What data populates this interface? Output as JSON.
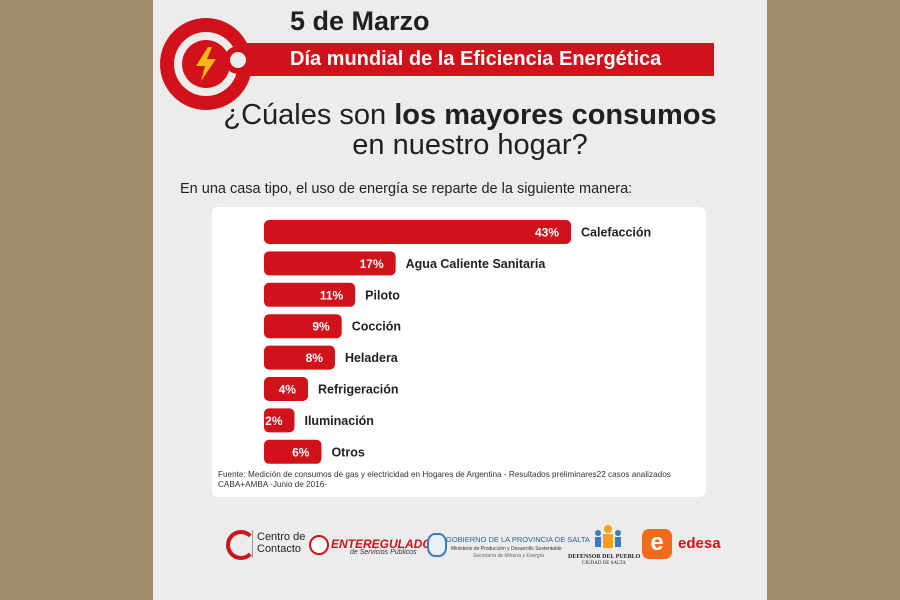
{
  "header": {
    "date": "5 de Marzo",
    "banner": "Día mundial de la Eficiencia Energética",
    "question_part1": "¿Cúales son ",
    "question_bold": "los mayores consumos",
    "question_part2": "en nuestro hogar?",
    "intro": "En una casa tipo, el uso de energía se reparte de la siguiente manera:"
  },
  "colors": {
    "accent": "#d1121b",
    "background": "#a08c6b",
    "poster": "#ececeb"
  },
  "chart_data": {
    "type": "bar",
    "orientation": "horizontal",
    "categories": [
      "Calefacción",
      "Agua Caliente Sanitaria",
      "Piloto",
      "Cocción",
      "Heladera",
      "Refrigeración",
      "Iluminación",
      "Otros"
    ],
    "values": [
      43,
      17,
      11,
      9,
      8,
      4,
      2,
      6
    ],
    "value_labels": [
      "43%",
      "17%",
      "11%",
      "9%",
      "8%",
      "4%",
      "2%",
      "6%"
    ],
    "unit": "%",
    "color": "#d1121b",
    "grid": false,
    "legend": "none"
  },
  "source": "Fuente: Medición de consumos de gas y electricidad en Hogares de Argentina - Resultados preliminares22 casos analizados CABA+AMBA -Junio de 2016-",
  "logos": {
    "centro_contacto_1": "Centro de",
    "centro_contacto_2": "Contacto",
    "enteregulador": "ENTEREGULADOR",
    "enteregulador_sub": "de Servicios Públicos",
    "gobierno": "GOBIERNO DE LA PROVINCIA DE SALTA",
    "gobierno_sub1": "Ministerio de Producción y Desarrollo Sustentable",
    "gobierno_sub2": "Secretaría de Minería y Energía",
    "defensor": "DEFENSOR DEL PUEBLO",
    "defensor_sub": "CIUDAD DE SALTA",
    "edesa_mark": "e",
    "edesa": "edesa"
  }
}
